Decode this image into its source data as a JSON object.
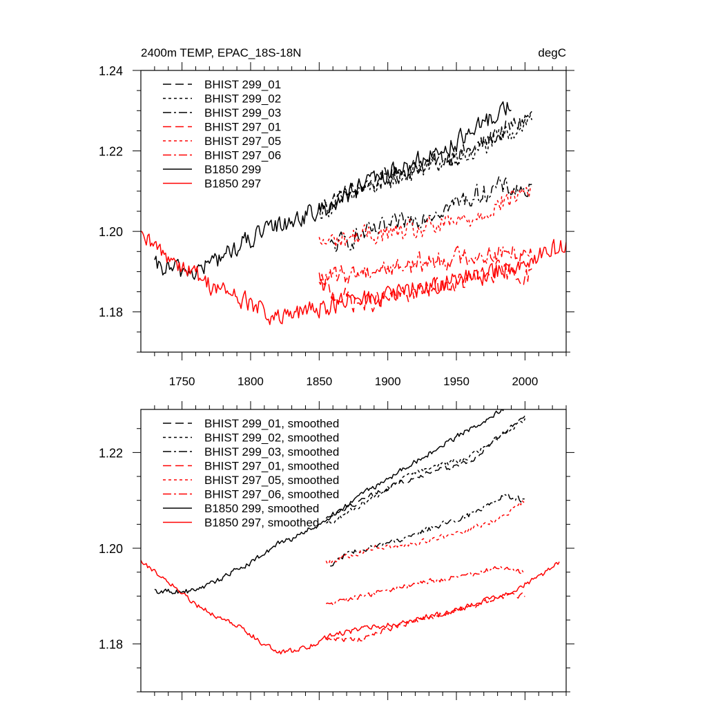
{
  "chart_data": [
    {
      "type": "line",
      "title": "2400m TEMP, EPAC_18S-18N",
      "units": "degC",
      "xlabel": "",
      "ylabel": "",
      "xlim": [
        1720,
        2030
      ],
      "ylim": [
        1.17,
        1.24
      ],
      "xticks": [
        1750,
        1800,
        1850,
        1900,
        1950,
        2000
      ],
      "yticks": [
        1.18,
        1.2,
        1.22,
        1.24
      ],
      "ytick_labels": [
        "1.18",
        "1.20",
        "1.22",
        "1.24"
      ],
      "show_x_labels": true,
      "legend_position": "top-left",
      "noise": 0.0022,
      "series": [
        {
          "name": "BHIST 299_01",
          "color": "#000000",
          "style": "dash",
          "x": [
            1850,
            1880,
            1920,
            1960,
            2005
          ],
          "y": [
            1.206,
            1.211,
            1.216,
            1.22,
            1.229
          ]
        },
        {
          "name": "BHIST 299_02",
          "color": "#000000",
          "style": "dot",
          "x": [
            1850,
            1880,
            1920,
            1960,
            2005
          ],
          "y": [
            1.205,
            1.21,
            1.215,
            1.219,
            1.228
          ]
        },
        {
          "name": "BHIST 299_03",
          "color": "#000000",
          "style": "dashdot",
          "x": [
            1858,
            1880,
            1910,
            1950,
            1980,
            2005
          ],
          "y": [
            1.196,
            1.199,
            1.202,
            1.207,
            1.211,
            1.21
          ]
        },
        {
          "name": "BHIST 297_01",
          "color": "#ff0000",
          "style": "dash",
          "x": [
            1850,
            1880,
            1910,
            1950,
            1980,
            2005
          ],
          "y": [
            1.186,
            1.182,
            1.184,
            1.187,
            1.19,
            1.189
          ]
        },
        {
          "name": "BHIST 297_05",
          "color": "#ff0000",
          "style": "dot",
          "x": [
            1850,
            1880,
            1920,
            1960,
            2005
          ],
          "y": [
            1.197,
            1.199,
            1.2,
            1.203,
            1.211
          ]
        },
        {
          "name": "BHIST 297_06",
          "color": "#ff0000",
          "style": "dashdot",
          "x": [
            1850,
            1880,
            1920,
            1960,
            2005
          ],
          "y": [
            1.188,
            1.19,
            1.192,
            1.194,
            1.195
          ]
        },
        {
          "name": "B1850 299",
          "color": "#000000",
          "style": "solid",
          "x": [
            1730,
            1760,
            1800,
            1830,
            1850,
            1880,
            1920,
            1960,
            1990
          ],
          "y": [
            1.191,
            1.19,
            1.198,
            1.203,
            1.205,
            1.211,
            1.217,
            1.224,
            1.232
          ]
        },
        {
          "name": "B1850 297",
          "color": "#ff0000",
          "style": "solid",
          "x": [
            1720,
            1740,
            1770,
            1800,
            1820,
            1840,
            1860,
            1900,
            1940,
            1980,
            2010,
            2030
          ],
          "y": [
            1.198,
            1.194,
            1.187,
            1.182,
            1.178,
            1.18,
            1.182,
            1.184,
            1.187,
            1.19,
            1.194,
            1.197
          ]
        }
      ]
    },
    {
      "type": "line",
      "title": "",
      "units": "",
      "xlabel": "",
      "ylabel": "",
      "xlim": [
        1720,
        2030
      ],
      "ylim": [
        1.17,
        1.229
      ],
      "xticks": [
        1750,
        1800,
        1850,
        1900,
        1950,
        2000
      ],
      "yticks": [
        1.18,
        1.2,
        1.22
      ],
      "ytick_labels": [
        "1.18",
        "1.20",
        "1.22"
      ],
      "show_x_labels": false,
      "legend_position": "top-left",
      "noise": 0.0005,
      "series": [
        {
          "name": "BHIST 299_01, smoothed",
          "color": "#000000",
          "style": "dash",
          "x": [
            1855,
            1880,
            1920,
            1960,
            2000
          ],
          "y": [
            1.206,
            1.21,
            1.215,
            1.218,
            1.228
          ]
        },
        {
          "name": "BHIST 299_02, smoothed",
          "color": "#000000",
          "style": "dot",
          "x": [
            1855,
            1880,
            1920,
            1960,
            2000
          ],
          "y": [
            1.205,
            1.209,
            1.216,
            1.219,
            1.227
          ]
        },
        {
          "name": "BHIST 299_03, smoothed",
          "color": "#000000",
          "style": "dashdot",
          "x": [
            1858,
            1870,
            1900,
            1930,
            1960,
            1985,
            2000
          ],
          "y": [
            1.196,
            1.199,
            1.201,
            1.204,
            1.207,
            1.211,
            1.21
          ]
        },
        {
          "name": "BHIST 297_01, smoothed",
          "color": "#ff0000",
          "style": "dash",
          "x": [
            1855,
            1880,
            1910,
            1950,
            1985,
            2000
          ],
          "y": [
            1.181,
            1.181,
            1.184,
            1.187,
            1.19,
            1.19
          ]
        },
        {
          "name": "BHIST 297_05, smoothed",
          "color": "#ff0000",
          "style": "dot",
          "x": [
            1855,
            1890,
            1920,
            1950,
            1980,
            2000
          ],
          "y": [
            1.197,
            1.2,
            1.201,
            1.203,
            1.206,
            1.21
          ]
        },
        {
          "name": "BHIST 297_06, smoothed",
          "color": "#ff0000",
          "style": "dashdot",
          "x": [
            1855,
            1880,
            1910,
            1950,
            1985,
            2000
          ],
          "y": [
            1.188,
            1.19,
            1.192,
            1.194,
            1.196,
            1.195
          ]
        },
        {
          "name": "B1850 299, smoothed",
          "color": "#000000",
          "style": "solid",
          "x": [
            1730,
            1745,
            1760,
            1780,
            1800,
            1820,
            1830,
            1850,
            1880,
            1920,
            1960,
            1985
          ],
          "y": [
            1.191,
            1.191,
            1.191,
            1.194,
            1.197,
            1.201,
            1.202,
            1.205,
            1.211,
            1.218,
            1.225,
            1.229
          ]
        },
        {
          "name": "B1850 297, smoothed",
          "color": "#ff0000",
          "style": "solid",
          "x": [
            1720,
            1740,
            1760,
            1790,
            1820,
            1840,
            1860,
            1900,
            1950,
            1990,
            2010,
            2025
          ],
          "y": [
            1.197,
            1.193,
            1.188,
            1.184,
            1.178,
            1.179,
            1.182,
            1.184,
            1.187,
            1.191,
            1.194,
            1.197
          ]
        }
      ]
    }
  ]
}
